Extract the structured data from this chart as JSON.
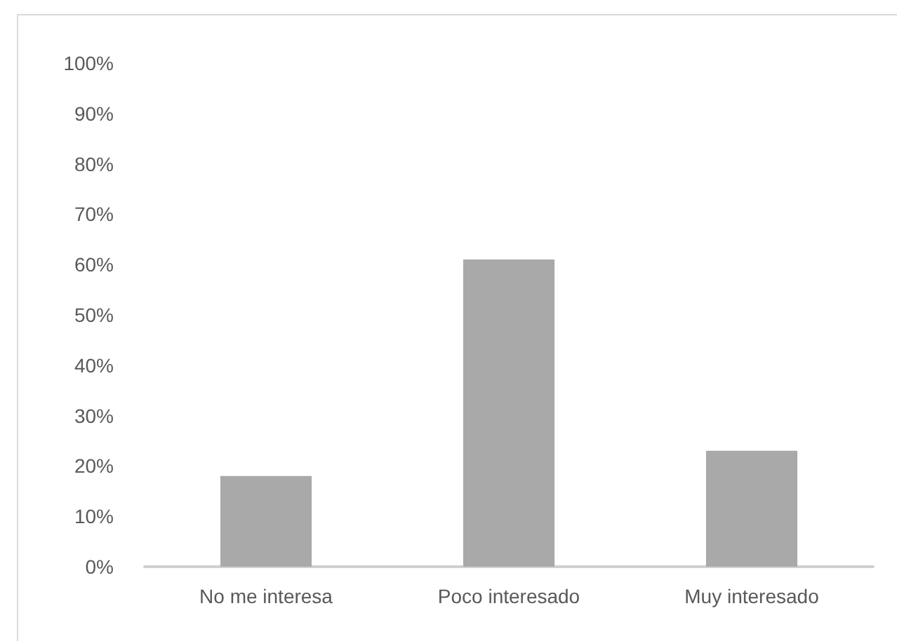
{
  "chart_data": {
    "type": "bar",
    "categories": [
      "No me interesa",
      "Poco interesado",
      "Muy interesado"
    ],
    "values": [
      18,
      61,
      23
    ],
    "color": "#a9a9a9",
    "ylim": [
      0,
      100
    ],
    "yticks": [
      {
        "value": 0,
        "label": "0%"
      },
      {
        "value": 10,
        "label": "10%"
      },
      {
        "value": 20,
        "label": "20%"
      },
      {
        "value": 30,
        "label": "30%"
      },
      {
        "value": 40,
        "label": "40%"
      },
      {
        "value": 50,
        "label": "50%"
      },
      {
        "value": 60,
        "label": "60%"
      },
      {
        "value": 70,
        "label": "70%"
      },
      {
        "value": 80,
        "label": "80%"
      },
      {
        "value": 90,
        "label": "90%"
      },
      {
        "value": 100,
        "label": "100%"
      }
    ],
    "grid": false
  }
}
